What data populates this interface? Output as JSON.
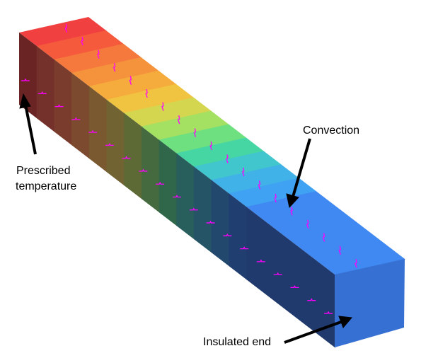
{
  "labels": {
    "prescribed_line1": "Prescribed",
    "prescribed_line2": "temperature",
    "convection": "Convection",
    "insulated": "Insulated end"
  },
  "colors": {
    "top_bands": [
      "#f04040",
      "#f55a3c",
      "#f5783c",
      "#f5923c",
      "#f5ac3c",
      "#f0c440",
      "#d4d650",
      "#a4e062",
      "#6ee080",
      "#46d6a4",
      "#40c6cc",
      "#40b2e8",
      "#40a2f2",
      "#4088f2"
    ],
    "side_bands": [
      "#6a2424",
      "#74302a",
      "#7a3c2c",
      "#7c4a2e",
      "#7a5830",
      "#726432",
      "#5e6a36",
      "#466a40",
      "#30664a",
      "#285e5c",
      "#245466",
      "#22486e",
      "#213e70",
      "#203a6e"
    ],
    "end_face": "#3670d2",
    "convection_marker": "#ff00ff",
    "arrow": "#000000"
  }
}
